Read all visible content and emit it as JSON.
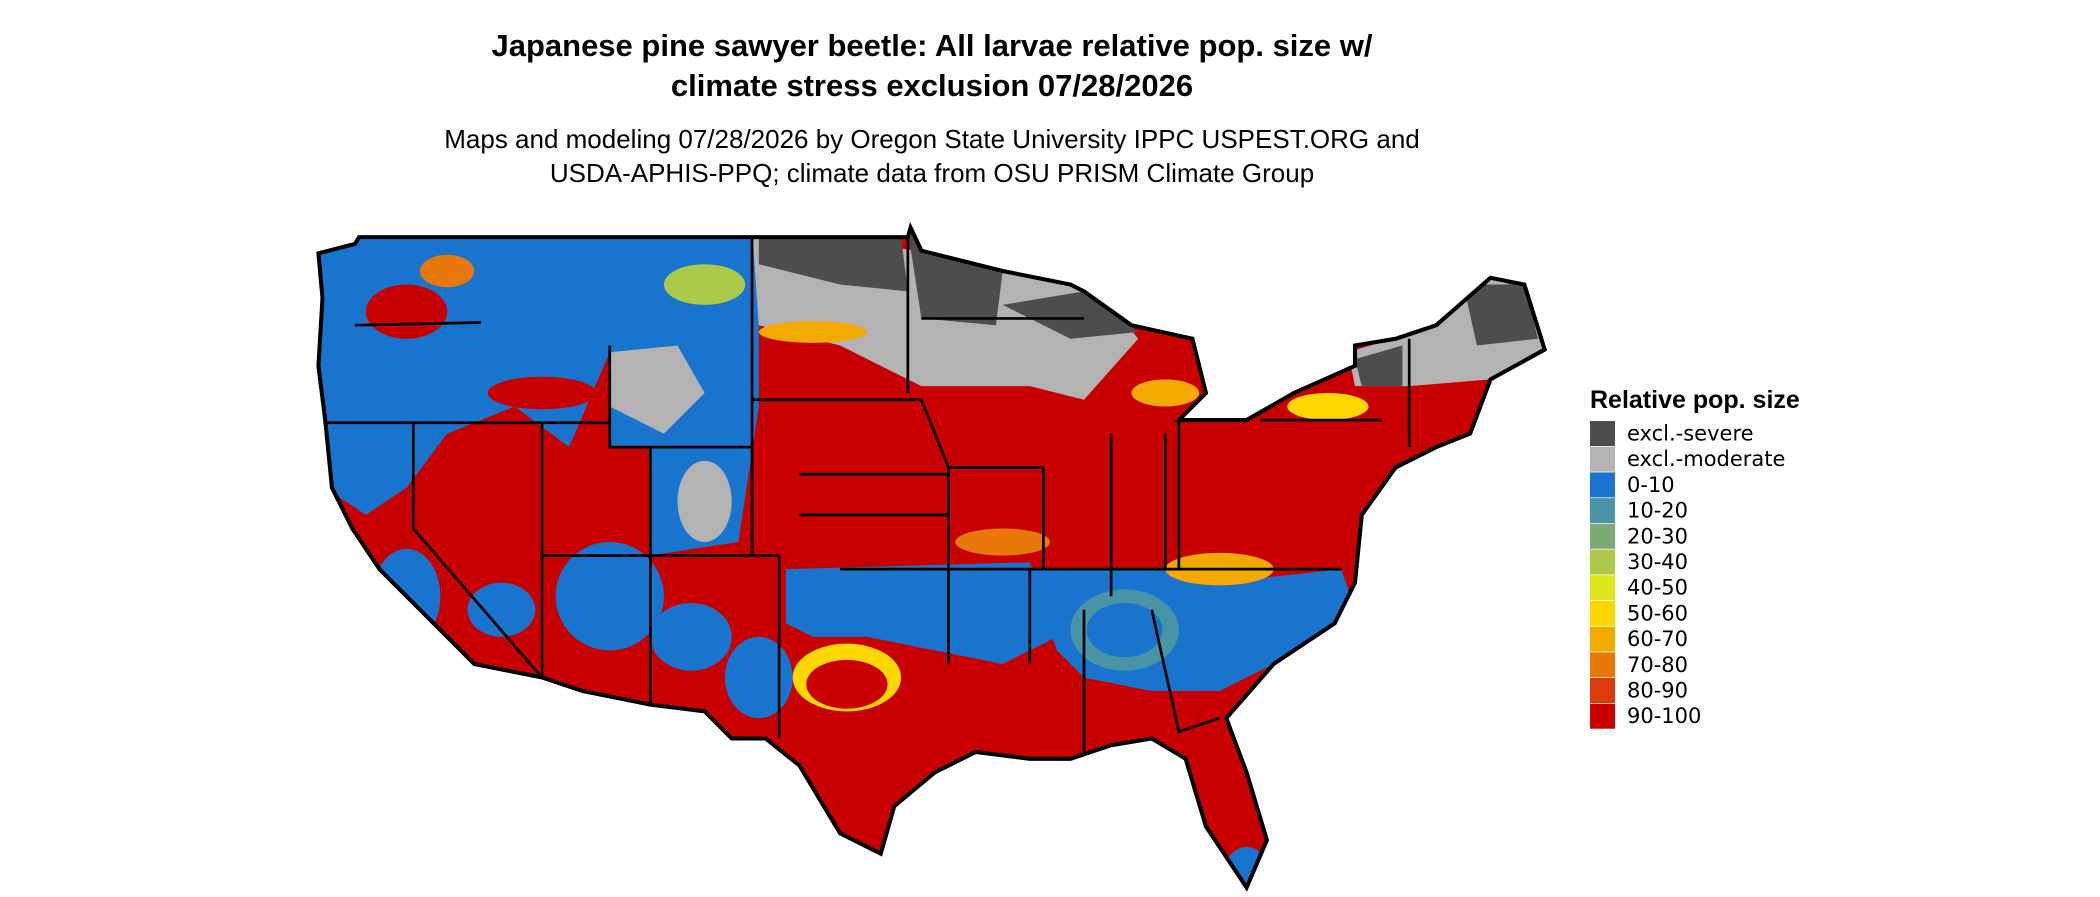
{
  "header": {
    "title": [
      "Japanese pine sawyer beetle: All larvae relative pop. size w/",
      "climate stress exclusion 07/28/2026"
    ],
    "subtitle": [
      "Maps and modeling 07/28/2026 by Oregon State University IPPC USPEST.ORG and",
      "USDA-APHIS-PPQ; climate data from OSU PRISM Climate Group"
    ]
  },
  "legend": {
    "title": "Relative pop. size",
    "items": [
      {
        "label": "excl.-severe",
        "color": "#4d4d4d"
      },
      {
        "label": "excl.-moderate",
        "color": "#b3b3b3"
      },
      {
        "label": "0-10",
        "color": "#1874cd"
      },
      {
        "label": "10-20",
        "color": "#4a94a8"
      },
      {
        "label": "20-30",
        "color": "#7aab74"
      },
      {
        "label": "30-40",
        "color": "#acc94a"
      },
      {
        "label": "40-50",
        "color": "#dfe61a"
      },
      {
        "label": "50-60",
        "color": "#ffd700"
      },
      {
        "label": "60-70",
        "color": "#f2a900"
      },
      {
        "label": "70-80",
        "color": "#e8780a"
      },
      {
        "label": "80-90",
        "color": "#d93c0a"
      },
      {
        "label": "90-100",
        "color": "#c80000"
      }
    ]
  }
}
